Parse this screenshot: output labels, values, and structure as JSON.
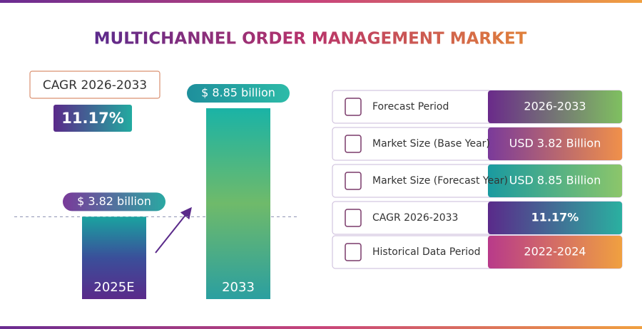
{
  "title": "MULTICHANNEL ORDER MANAGEMENT MARKET",
  "cagr": {
    "label": "CAGR 2026-2033",
    "value": "11.17%"
  },
  "chart_data": {
    "type": "bar",
    "categories": [
      "2025E",
      "2033"
    ],
    "values": [
      3.82,
      8.85
    ],
    "value_labels": [
      "$ 3.82 billion",
      "$ 8.85 billion"
    ]
  },
  "table": {
    "rows": [
      [
        "Forecast Period",
        "2026-2033"
      ],
      [
        "Market Size (Base Year)",
        "USD 3.82 Billion"
      ],
      [
        "Market Size (Forecast Year)",
        "USD 8.85 Billion"
      ],
      [
        "CAGR 2026-2033",
        "11.17%"
      ],
      [
        "Historical Data Period",
        "2022-2024"
      ]
    ]
  }
}
